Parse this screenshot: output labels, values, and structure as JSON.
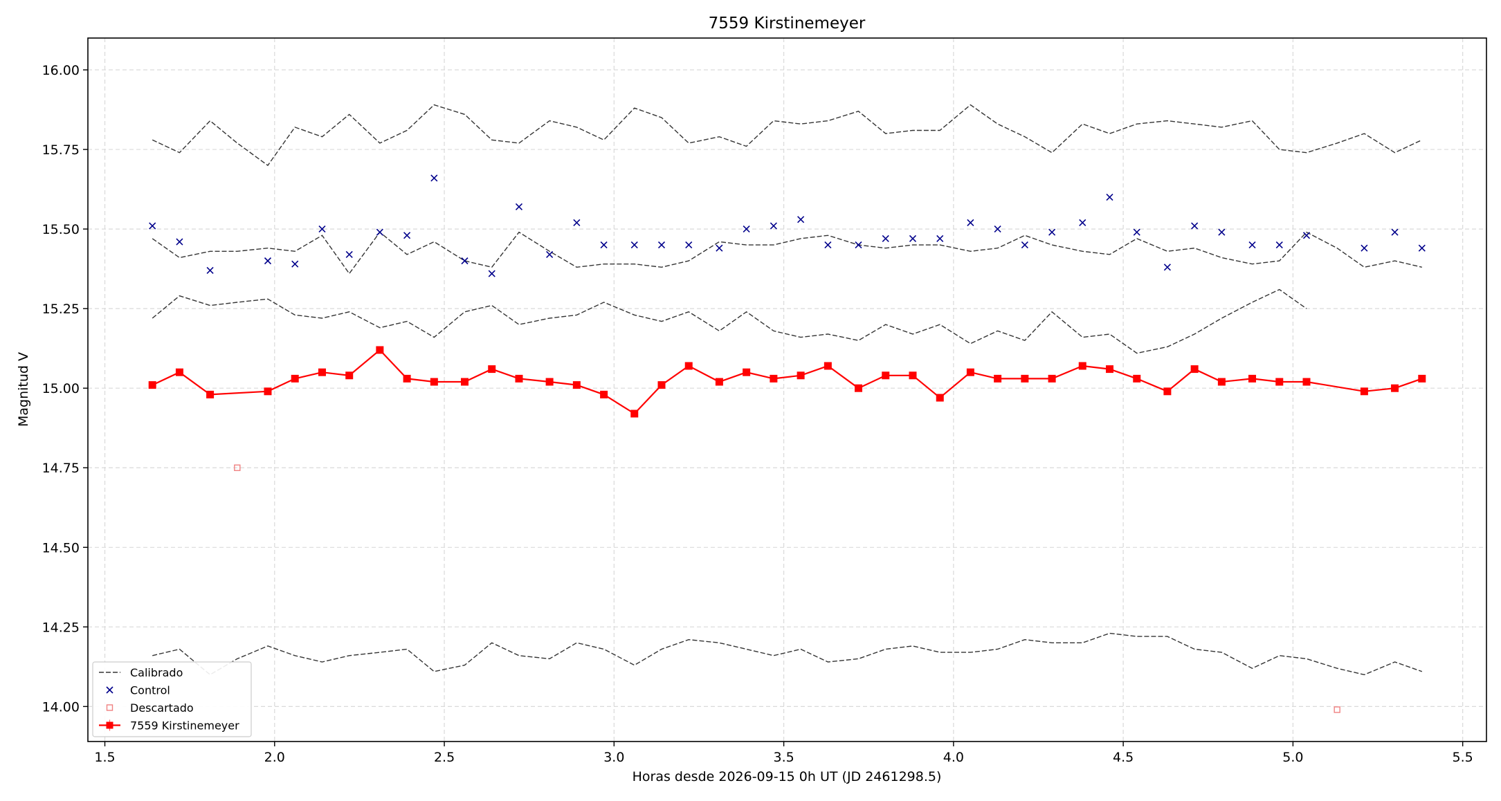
{
  "chart_data": {
    "type": "line",
    "title": "7559 Kirstinemeyer",
    "xlabel": "Horas desde 2026-09-15 0h UT (JD 2461298.5)",
    "ylabel": "Magnitud V",
    "xlim": [
      1.45,
      5.57
    ],
    "ylim": [
      16.1,
      13.89
    ],
    "y_inverted": true,
    "grid": true,
    "legend_position": "lower-left",
    "xticks": [
      1.5,
      2.0,
      2.5,
      3.0,
      3.5,
      4.0,
      4.5,
      5.0,
      5.5
    ],
    "xtick_labels": [
      "1.5",
      "2.0",
      "2.5",
      "3.0",
      "3.5",
      "4.0",
      "4.5",
      "5.0",
      "5.5"
    ],
    "yticks": [
      14.0,
      14.25,
      14.5,
      14.75,
      15.0,
      15.25,
      15.5,
      15.75,
      16.0
    ],
    "ytick_labels": [
      "14.00",
      "14.25",
      "14.50",
      "14.75",
      "15.00",
      "15.25",
      "15.50",
      "15.75",
      "16.00"
    ],
    "colors": {
      "target": "#ff0000",
      "calibrated": "#333333",
      "control": "#00008b",
      "discarded": "#f08080"
    },
    "legend": [
      {
        "key": "calibrated",
        "label": "Calibrado"
      },
      {
        "key": "control",
        "label": "Control"
      },
      {
        "key": "discarded",
        "label": "Descartado"
      },
      {
        "key": "target",
        "label": "7559 Kirstinemeyer"
      }
    ],
    "calibrated_series": [
      {
        "x": [
          1.64,
          1.72,
          1.81,
          1.89,
          1.98,
          2.06,
          2.14,
          2.22,
          2.31,
          2.39,
          2.47,
          2.56,
          2.64,
          2.72,
          2.81,
          2.89,
          2.97,
          3.06,
          3.14,
          3.22,
          3.31,
          3.39,
          3.47,
          3.55,
          3.63,
          3.72,
          3.8,
          3.88,
          3.96,
          4.05,
          4.13,
          4.21,
          4.29,
          4.38,
          4.46,
          4.54,
          4.63,
          4.71,
          4.79,
          4.88,
          4.96,
          5.04,
          5.13,
          5.21,
          5.3,
          5.38
        ],
        "y": [
          14.16,
          14.18,
          14.1,
          14.15,
          14.19,
          14.16,
          14.14,
          14.16,
          14.17,
          14.18,
          14.11,
          14.13,
          14.2,
          14.16,
          14.15,
          14.2,
          14.18,
          14.13,
          14.18,
          14.21,
          14.2,
          14.18,
          14.16,
          14.18,
          14.14,
          14.15,
          14.18,
          14.19,
          14.17,
          14.17,
          14.18,
          14.21,
          14.2,
          14.2,
          14.23,
          14.22,
          14.22,
          14.18,
          14.17,
          14.12,
          14.16,
          14.15,
          14.12,
          14.1,
          14.14,
          14.11
        ]
      },
      {
        "x": [
          1.64,
          1.72,
          1.81,
          1.89,
          1.98,
          2.06,
          2.14,
          2.22,
          2.31,
          2.39,
          2.47,
          2.56,
          2.64,
          2.72,
          2.81,
          2.89,
          2.97,
          3.06,
          3.14,
          3.22,
          3.31,
          3.39,
          3.47,
          3.55,
          3.63,
          3.72,
          3.8,
          3.88,
          3.96,
          4.05,
          4.13,
          4.21,
          4.29,
          4.38,
          4.46,
          4.54,
          4.63,
          4.71,
          4.79,
          4.88,
          4.96,
          5.04
        ],
        "y": [
          15.22,
          15.29,
          15.26,
          15.27,
          15.28,
          15.23,
          15.22,
          15.24,
          15.19,
          15.21,
          15.16,
          15.24,
          15.26,
          15.2,
          15.22,
          15.23,
          15.27,
          15.23,
          15.21,
          15.24,
          15.18,
          15.24,
          15.18,
          15.16,
          15.17,
          15.15,
          15.2,
          15.17,
          15.2,
          15.14,
          15.18,
          15.15,
          15.24,
          15.16,
          15.17,
          15.11,
          15.13,
          15.17,
          15.22,
          15.27,
          15.31,
          15.25
        ]
      },
      {
        "x": [
          1.64,
          1.72,
          1.81,
          1.89,
          1.98,
          2.06,
          2.14,
          2.22,
          2.31,
          2.39,
          2.47,
          2.56,
          2.64,
          2.72,
          2.81,
          2.89,
          2.97,
          3.06,
          3.14,
          3.22,
          3.31,
          3.39,
          3.47,
          3.55,
          3.63,
          3.72,
          3.8,
          3.88,
          3.96,
          4.05,
          4.13,
          4.21,
          4.29,
          4.38,
          4.46,
          4.54,
          4.63,
          4.71,
          4.79,
          4.88,
          4.96,
          5.04,
          5.13,
          5.21,
          5.3,
          5.38
        ],
        "y": [
          15.47,
          15.41,
          15.43,
          15.43,
          15.44,
          15.43,
          15.48,
          15.36,
          15.49,
          15.42,
          15.46,
          15.4,
          15.38,
          15.49,
          15.43,
          15.38,
          15.39,
          15.39,
          15.38,
          15.4,
          15.46,
          15.45,
          15.45,
          15.47,
          15.48,
          15.45,
          15.44,
          15.45,
          15.45,
          15.43,
          15.44,
          15.48,
          15.45,
          15.43,
          15.42,
          15.47,
          15.43,
          15.44,
          15.41,
          15.39,
          15.4,
          15.49,
          15.44,
          15.38,
          15.4,
          15.38
        ]
      },
      {
        "x": [
          1.64,
          1.72,
          1.81,
          1.89,
          1.98,
          2.06,
          2.14,
          2.22,
          2.31,
          2.39,
          2.47,
          2.56,
          2.64,
          2.72,
          2.81,
          2.89,
          2.97,
          3.06,
          3.14,
          3.22,
          3.31,
          3.39,
          3.47,
          3.55,
          3.63,
          3.72,
          3.8,
          3.88,
          3.96,
          4.05,
          4.13,
          4.21,
          4.29,
          4.38,
          4.46,
          4.54,
          4.63,
          4.71,
          4.79,
          4.88,
          4.96,
          5.04,
          5.13,
          5.21,
          5.3,
          5.38
        ],
        "y": [
          15.78,
          15.74,
          15.84,
          15.77,
          15.7,
          15.82,
          15.79,
          15.86,
          15.77,
          15.81,
          15.89,
          15.86,
          15.78,
          15.77,
          15.84,
          15.82,
          15.78,
          15.88,
          15.85,
          15.77,
          15.79,
          15.76,
          15.84,
          15.83,
          15.84,
          15.87,
          15.8,
          15.81,
          15.81,
          15.89,
          15.83,
          15.79,
          15.74,
          15.83,
          15.8,
          15.83,
          15.84,
          15.83,
          15.82,
          15.84,
          15.75,
          15.74,
          15.77,
          15.8,
          15.74,
          15.78
        ]
      }
    ],
    "control": {
      "x": [
        1.64,
        1.72,
        1.81,
        1.98,
        2.06,
        2.14,
        2.22,
        2.31,
        2.39,
        2.47,
        2.56,
        2.64,
        2.72,
        2.81,
        2.89,
        2.97,
        3.06,
        3.14,
        3.22,
        3.31,
        3.39,
        3.47,
        3.55,
        3.63,
        3.72,
        3.8,
        3.88,
        3.96,
        4.05,
        4.13,
        4.21,
        4.29,
        4.38,
        4.46,
        4.54,
        4.63,
        4.71,
        4.79,
        4.88,
        4.96,
        5.04,
        5.21,
        5.3,
        5.38
      ],
      "y": [
        15.51,
        15.46,
        15.37,
        15.4,
        15.39,
        15.5,
        15.42,
        15.49,
        15.48,
        15.66,
        15.4,
        15.36,
        15.57,
        15.42,
        15.52,
        15.45,
        15.45,
        15.45,
        15.45,
        15.44,
        15.5,
        15.51,
        15.53,
        15.45,
        15.45,
        15.47,
        15.47,
        15.47,
        15.52,
        15.5,
        15.45,
        15.49,
        15.52,
        15.6,
        15.49,
        15.38,
        15.51,
        15.49,
        15.45,
        15.45,
        15.48,
        15.44,
        15.49,
        15.44
      ]
    },
    "discarded": {
      "x": [
        1.89,
        5.13
      ],
      "y": [
        14.75,
        13.99
      ]
    },
    "target": {
      "name": "7559 Kirstinemeyer",
      "x": [
        1.64,
        1.72,
        1.81,
        1.98,
        2.06,
        2.14,
        2.22,
        2.31,
        2.39,
        2.47,
        2.56,
        2.64,
        2.72,
        2.81,
        2.89,
        2.97,
        3.06,
        3.14,
        3.22,
        3.31,
        3.39,
        3.47,
        3.55,
        3.63,
        3.72,
        3.8,
        3.88,
        3.96,
        4.05,
        4.13,
        4.21,
        4.29,
        4.38,
        4.46,
        4.54,
        4.63,
        4.71,
        4.79,
        4.88,
        4.96,
        5.04,
        5.21,
        5.3,
        5.38
      ],
      "y": [
        15.01,
        15.05,
        14.98,
        14.99,
        15.03,
        15.05,
        15.04,
        15.12,
        15.03,
        15.02,
        15.02,
        15.06,
        15.03,
        15.02,
        15.01,
        14.98,
        14.92,
        15.01,
        15.07,
        15.02,
        15.05,
        15.03,
        15.04,
        15.07,
        15.0,
        15.04,
        15.04,
        14.97,
        15.05,
        15.03,
        15.03,
        15.03,
        15.07,
        15.06,
        15.03,
        14.99,
        15.06,
        15.02,
        15.03,
        15.02,
        15.02,
        14.99,
        15.0,
        15.03
      ],
      "yerr": 0.01
    }
  }
}
